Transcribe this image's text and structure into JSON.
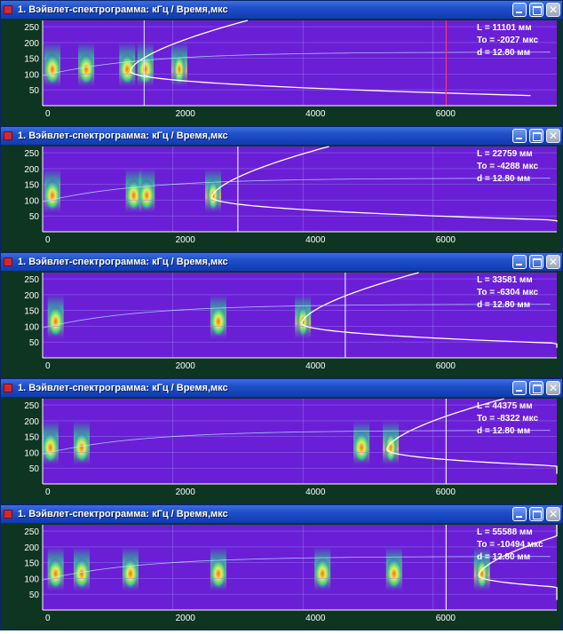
{
  "window_title": "1. Вэйвлет-спектрограмма: кГц / Время,мкс",
  "y_ticks": [
    "250",
    "200",
    "150",
    "100",
    "50"
  ],
  "x_ticks": [
    "0",
    "2000",
    "4000",
    "6000"
  ],
  "colors": {
    "plot_background": "#6a1fd6",
    "axis_area": "#0e3522",
    "grid": "#9a7ff0",
    "hot": "#ff6a00",
    "warm": "#f2f25a",
    "cool": "#28d28c",
    "curve": "#ffffff",
    "cursor": "#ff3366"
  },
  "window_buttons": [
    "minimize-icon",
    "maximize-icon",
    "close-icon"
  ],
  "windows": [
    {
      "L": "L = 11101 мм",
      "To": "To = -2027 мкс",
      "d": "d = 12.80 мм"
    },
    {
      "L": "L = 22759 мм",
      "To": "To = -4288 мкс",
      "d": "d = 12.80 мм"
    },
    {
      "L": "L = 33581 мм",
      "To": "To = -6304 мкс",
      "d": "d = 12.80 мм"
    },
    {
      "L": "L = 44375 мм",
      "To": "To = -8322 мкс",
      "d": "d = 12.80 мм"
    },
    {
      "L": "L = 55588 мм",
      "To": "To = -10494 мкс",
      "d": "d = 12.80 мм"
    }
  ],
  "chart_data": [
    {
      "type": "heatmap",
      "xlim": [
        0,
        7900
      ],
      "ylim": [
        0,
        270
      ],
      "x_ticks": [
        0,
        2000,
        4000,
        6000
      ],
      "y_ticks": [
        50,
        100,
        150,
        200,
        250
      ],
      "cursor_x": 6200,
      "cursor_b_x": 1560,
      "curve_arrival_us": 1350,
      "hot_bands_x": [
        150,
        670,
        1300,
        1580,
        2100
      ]
    },
    {
      "type": "heatmap",
      "xlim": [
        0,
        7900
      ],
      "ylim": [
        0,
        270
      ],
      "x_ticks": [
        0,
        2000,
        4000,
        6000
      ],
      "y_ticks": [
        50,
        100,
        150,
        200,
        250
      ],
      "cursor_x": 3000,
      "curve_arrival_us": 2600,
      "hot_bands_x": [
        150,
        1400,
        1600,
        2620
      ]
    },
    {
      "type": "heatmap",
      "xlim": [
        0,
        7900
      ],
      "ylim": [
        0,
        270
      ],
      "x_ticks": [
        0,
        2000,
        4000,
        6000
      ],
      "y_ticks": [
        50,
        100,
        150,
        200,
        250
      ],
      "cursor_x": 4650,
      "curve_arrival_us": 3980,
      "hot_bands_x": [
        200,
        2700,
        4000
      ]
    },
    {
      "type": "heatmap",
      "xlim": [
        0,
        7900
      ],
      "ylim": [
        0,
        270
      ],
      "x_ticks": [
        0,
        2000,
        4000,
        6000
      ],
      "y_ticks": [
        50,
        100,
        150,
        200,
        250
      ],
      "cursor_x": 6200,
      "curve_arrival_us": 5290,
      "hot_bands_x": [
        120,
        600,
        4900,
        5350
      ]
    },
    {
      "type": "heatmap",
      "xlim": [
        0,
        7900
      ],
      "ylim": [
        0,
        270
      ],
      "x_ticks": [
        0,
        2000,
        4000,
        6000
      ],
      "y_ticks": [
        50,
        100,
        150,
        200,
        250
      ],
      "cursor_x": 6200,
      "curve_arrival_us": 6700,
      "hot_bands_x": [
        200,
        600,
        1350,
        2700,
        4300,
        5400,
        6750
      ]
    }
  ]
}
